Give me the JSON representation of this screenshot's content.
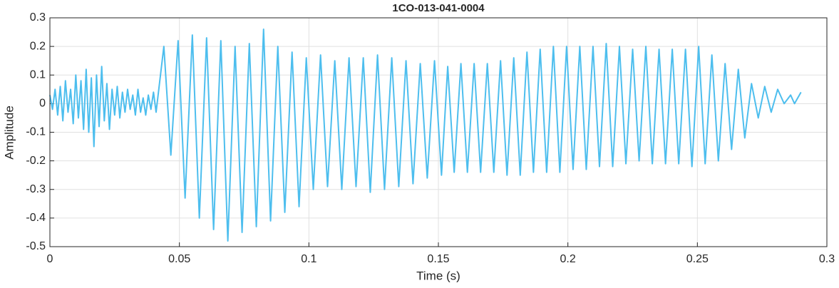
{
  "chart_data": {
    "type": "line",
    "title": "1CO-013-041-0004",
    "xlabel": "Time (s)",
    "ylabel": "Amplitude",
    "color": "#4DBEEE",
    "grid": true,
    "xlim": [
      0,
      0.3
    ],
    "xticks": [
      0,
      0.05,
      0.1,
      0.15,
      0.2,
      0.25,
      0.3
    ],
    "ylim": [
      -0.5,
      0.3
    ],
    "yticks": [
      -0.5,
      -0.4,
      -0.3,
      -0.2,
      -0.1,
      0,
      0.1,
      0.2,
      0.3
    ],
    "x": [
      0,
      0.001,
      0.002,
      0.003,
      0.004,
      0.005,
      0.006,
      0.007,
      0.008,
      0.009,
      0.01,
      0.011,
      0.012,
      0.013,
      0.014,
      0.015,
      0.016,
      0.017,
      0.018,
      0.019,
      0.02,
      0.021,
      0.022,
      0.023,
      0.024,
      0.025,
      0.026,
      0.027,
      0.028,
      0.029,
      0.03,
      0.031,
      0.032,
      0.033,
      0.034,
      0.035,
      0.036,
      0.037,
      0.038,
      0.039,
      0.04,
      0.041,
      0.044,
      0.0467,
      0.0495,
      0.0522,
      0.055,
      0.0577,
      0.0605,
      0.0632,
      0.066,
      0.0687,
      0.0715,
      0.0742,
      0.077,
      0.0797,
      0.0825,
      0.0852,
      0.088,
      0.0907,
      0.0935,
      0.0962,
      0.099,
      0.1017,
      0.1045,
      0.1072,
      0.11,
      0.1127,
      0.1155,
      0.1182,
      0.121,
      0.1237,
      0.1265,
      0.1292,
      0.132,
      0.1347,
      0.1375,
      0.1402,
      0.143,
      0.1457,
      0.1485,
      0.1512,
      0.1536,
      0.1561,
      0.1587,
      0.1612,
      0.1638,
      0.1663,
      0.1689,
      0.1714,
      0.174,
      0.1765,
      0.1791,
      0.1816,
      0.1842,
      0.1867,
      0.1893,
      0.1918,
      0.1944,
      0.1969,
      0.1995,
      0.202,
      0.2046,
      0.2071,
      0.2097,
      0.2122,
      0.2148,
      0.2173,
      0.2199,
      0.2224,
      0.225,
      0.2275,
      0.2301,
      0.2326,
      0.2352,
      0.2377,
      0.2403,
      0.2428,
      0.2454,
      0.2479,
      0.2505,
      0.253,
      0.2556,
      0.2581,
      0.2607,
      0.2632,
      0.2658,
      0.2683,
      0.2709,
      0.2735,
      0.276,
      0.2785,
      0.281,
      0.2835,
      0.286,
      0.2875,
      0.29
    ],
    "values": [
      0.03,
      -0.02,
      0.05,
      -0.04,
      0.06,
      -0.06,
      0.08,
      -0.03,
      0.05,
      -0.07,
      0.1,
      -0.05,
      0.08,
      -0.09,
      0.12,
      -0.1,
      0.09,
      -0.15,
      0.1,
      -0.08,
      0.13,
      -0.06,
      0.07,
      -0.09,
      0.05,
      -0.04,
      0.06,
      -0.05,
      0.04,
      -0.03,
      0.05,
      -0.02,
      0.03,
      -0.04,
      0.05,
      -0.03,
      0.02,
      -0.04,
      0.03,
      -0.02,
      0.04,
      -0.03,
      0.2,
      -0.18,
      0.22,
      -0.33,
      0.24,
      -0.4,
      0.23,
      -0.44,
      0.22,
      -0.48,
      0.2,
      -0.45,
      0.21,
      -0.43,
      0.26,
      -0.41,
      0.2,
      -0.38,
      0.18,
      -0.36,
      0.16,
      -0.3,
      0.17,
      -0.29,
      0.15,
      -0.3,
      0.16,
      -0.29,
      0.16,
      -0.31,
      0.17,
      -0.3,
      0.16,
      -0.29,
      0.15,
      -0.28,
      0.14,
      -0.26,
      0.15,
      -0.25,
      0.13,
      -0.24,
      0.14,
      -0.24,
      0.14,
      -0.24,
      0.14,
      -0.24,
      0.15,
      -0.25,
      0.16,
      -0.25,
      0.18,
      -0.24,
      0.19,
      -0.24,
      0.2,
      -0.24,
      0.2,
      -0.23,
      0.2,
      -0.23,
      0.2,
      -0.22,
      0.21,
      -0.22,
      0.2,
      -0.21,
      0.19,
      -0.2,
      0.2,
      -0.21,
      0.19,
      -0.21,
      0.19,
      -0.21,
      0.19,
      -0.22,
      0.2,
      -0.21,
      0.17,
      -0.2,
      0.14,
      -0.16,
      0.12,
      -0.12,
      0.07,
      -0.05,
      0.06,
      -0.03,
      0.05,
      0,
      0.03,
      0,
      0.04
    ]
  }
}
